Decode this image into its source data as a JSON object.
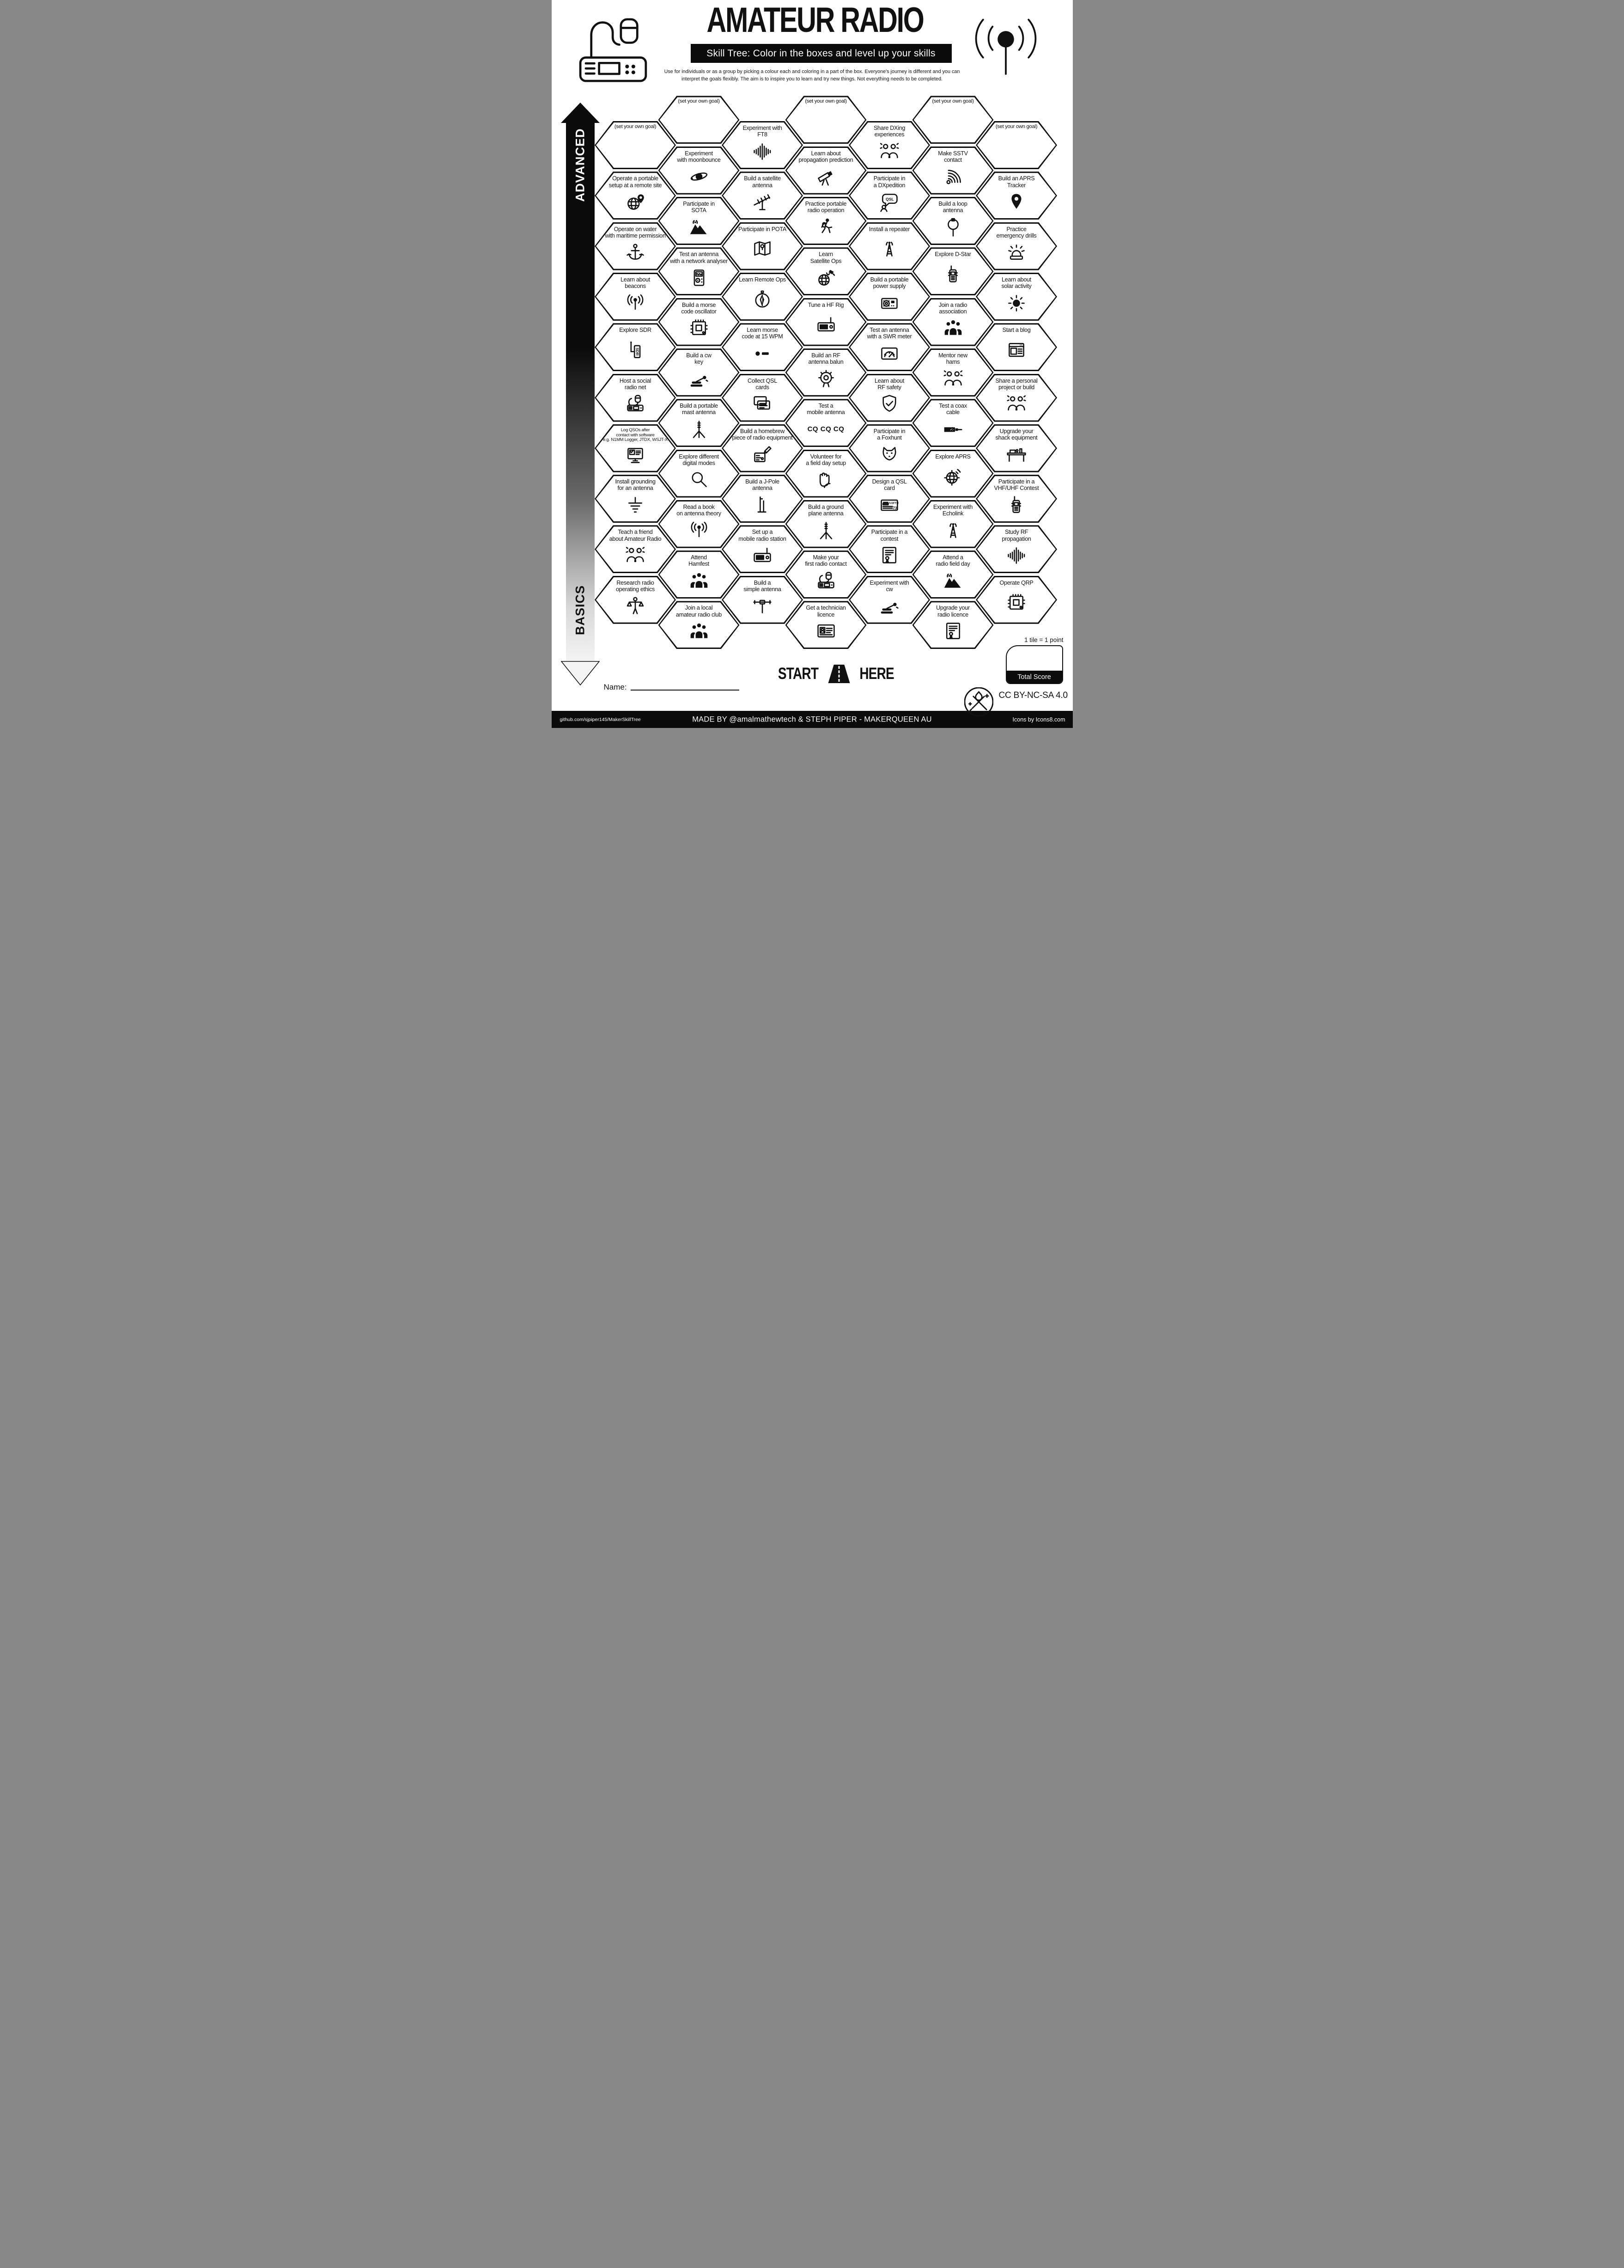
{
  "header": {
    "title": "AMATEUR RADIO",
    "subtitle": "Skill Tree:  Color in the boxes and level up your skills",
    "description": "Use for individuals or as a group by picking a colour each and coloring in a part of the box.  Everyone's journey is different and you can\ninterpret the goals flexibly.  The aim is to inspire you to learn and try new things. Not everything needs to be completed."
  },
  "level_arrow": {
    "top_label": "ADVANCED",
    "bottom_label": "BASICS"
  },
  "colors": {
    "ink": "#111111",
    "paper": "#ffffff"
  },
  "grid": {
    "columns": [
      {
        "items": [
          {
            "label": "(set your own goal)",
            "icon": "goal",
            "goal": true
          },
          {
            "label": "Operate a portable\nsetup at a remote site",
            "icon": "globe-pin"
          },
          {
            "label": "Operate on water\nwith maritime permission",
            "icon": "anchor"
          },
          {
            "label": "Learn about\nbeacons",
            "icon": "antenna-signal"
          },
          {
            "label": "Explore SDR",
            "icon": "sdr-dongle"
          },
          {
            "label": "Host a social\nradio net",
            "icon": "mic-radio"
          },
          {
            "label": "Log QSOs after\ncontact with software\ne.g. N1MM Logger, JTDX, WSJT-X",
            "icon": "computer-monitor",
            "small": true
          },
          {
            "label": "Install grounding\nfor an antenna",
            "icon": "ground-symbol"
          },
          {
            "label": "Teach a friend\nabout Amateur Radio",
            "icon": "people-learning"
          },
          {
            "label": "Research radio\noperating ethics",
            "icon": "ethics-scales"
          }
        ]
      },
      {
        "items": [
          {
            "label": "(set your own goal)",
            "icon": "goal",
            "goal": true
          },
          {
            "label": "Experiment\nwith moonbounce",
            "icon": "planet-orbit"
          },
          {
            "label": "Participate in\nSOTA",
            "icon": "mountain"
          },
          {
            "label": "Test an antenna\nwith a network analyser",
            "icon": "network-analyser"
          },
          {
            "label": "Build a morse\ncode oscillator",
            "icon": "circuit-board"
          },
          {
            "label": "Build a cw\nkey",
            "icon": "cw-key"
          },
          {
            "label": "Build a portable\nmast antenna",
            "icon": "mast-antenna"
          },
          {
            "label": "Explore different\ndigital modes",
            "icon": "magnifier"
          },
          {
            "label": "Read a book\non antenna theory",
            "icon": "antenna-signal"
          },
          {
            "label": "Attend\nHamfest",
            "icon": "crowd"
          },
          {
            "label": "Join a local\namateur radio club",
            "icon": "crowd"
          }
        ]
      },
      {
        "items": [
          {
            "label": "Experiment with\nFT8",
            "icon": "waveform"
          },
          {
            "label": "Build a satellite\nantenna",
            "icon": "yagi-antenna"
          },
          {
            "label": "Participate in POTA",
            "icon": "folded-map"
          },
          {
            "label": "Learn Remote Ops",
            "icon": "compass"
          },
          {
            "label": "Learn morse\ncode at 15 WPM",
            "icon": "morse-code"
          },
          {
            "label": "Collect QSL\ncards",
            "icon": "qsl-cards"
          },
          {
            "label": "Build a homebrew\npiece of radio equipment",
            "icon": "soldering"
          },
          {
            "label": "Build a J-Pole\nantenna",
            "icon": "j-pole"
          },
          {
            "label": "Set up a\nmobile radio station",
            "icon": "radio-rig"
          },
          {
            "label": "Build a\nsimple antenna",
            "icon": "dipole"
          }
        ]
      },
      {
        "items": [
          {
            "label": "(set your own goal)",
            "icon": "goal",
            "goal": true
          },
          {
            "label": "Learn about\npropagation prediction",
            "icon": "telescope"
          },
          {
            "label": "Practice portable\nradio operation",
            "icon": "walking-operator"
          },
          {
            "label": "Learn\nSatellite Ops",
            "icon": "globe-satellite"
          },
          {
            "label": "Tune a HF Rig",
            "icon": "radio-rig"
          },
          {
            "label": "Build an RF\nantenna balun",
            "icon": "toroid"
          },
          {
            "label": "Test a\nmobile antenna",
            "icon": "cq-call",
            "icon_text": "CQ CQ CQ"
          },
          {
            "label": "Volunteer for\na field day setup",
            "icon": "helping-hands"
          },
          {
            "label": "Build a ground\nplane antenna",
            "icon": "mast-antenna"
          },
          {
            "label": "Make your\nfirst radio contact",
            "icon": "mic-radio"
          },
          {
            "label": "Get a technician\nlicence",
            "icon": "id-card"
          }
        ]
      },
      {
        "items": [
          {
            "label": "Share DXing\nexperiences",
            "icon": "people-learning"
          },
          {
            "label": "Participate in\na DXpedition",
            "icon": "qsl-bubble"
          },
          {
            "label": "Install a repeater",
            "icon": "radio-tower"
          },
          {
            "label": "Build a portable\npower supply",
            "icon": "power-supply"
          },
          {
            "label": "Test an antenna\nwith a SWR meter",
            "icon": "swr-meter"
          },
          {
            "label": "Learn about\nRF safety",
            "icon": "shield-check"
          },
          {
            "label": "Participate in\na Foxhunt",
            "icon": "fox"
          },
          {
            "label": "Design a QSL\ncard",
            "icon": "qsl-card"
          },
          {
            "label": "Participate in a\ncontest",
            "icon": "certificate"
          },
          {
            "label": "Experiment with\ncw",
            "icon": "cw-key"
          }
        ]
      },
      {
        "items": [
          {
            "label": "(set your own goal)",
            "icon": "goal",
            "goal": true
          },
          {
            "label": "Make SSTV\ncontact",
            "icon": "signal-arcs"
          },
          {
            "label": "Build a loop\nantenna",
            "icon": "loop-antenna"
          },
          {
            "label": "Explore D-Star",
            "icon": "walkie-talkie"
          },
          {
            "label": "Join a radio\nassociation",
            "icon": "crowd"
          },
          {
            "label": "Mentor new\nhams",
            "icon": "people-learning"
          },
          {
            "label": "Test a coax\ncable",
            "icon": "coax-cable"
          },
          {
            "label": "Explore APRS",
            "icon": "globe-crosshair"
          },
          {
            "label": "Experiment with\nEcholink",
            "icon": "radio-tower"
          },
          {
            "label": "Attend a\nradio field day",
            "icon": "mountain"
          },
          {
            "label": "Upgrade your\nradio licence",
            "icon": "certificate"
          }
        ]
      },
      {
        "items": [
          {
            "label": "(set your own goal)",
            "icon": "goal",
            "goal": true
          },
          {
            "label": "Build an APRS\nTracker",
            "icon": "map-pin"
          },
          {
            "label": "Practice\nemergency drills",
            "icon": "siren"
          },
          {
            "label": "Learn about\nsolar activity",
            "icon": "sun"
          },
          {
            "label": "Start a blog",
            "icon": "browser-window"
          },
          {
            "label": "Share a personal\nproject or build",
            "icon": "people-learning"
          },
          {
            "label": "Upgrade your\nshack equipment",
            "icon": "desk-setup"
          },
          {
            "label": "Participate in a\nVHF/UHF Contest",
            "icon": "walkie-talkie"
          },
          {
            "label": "Study RF\npropagation",
            "icon": "waveform"
          },
          {
            "label": "Operate QRP",
            "icon": "circuit-board"
          }
        ]
      }
    ]
  },
  "start": {
    "word1": "START",
    "word2": "HERE"
  },
  "name_label": "Name:",
  "score": {
    "tile_note": "1 tile = 1 point",
    "total_label": "Total Score"
  },
  "license_label": "CC BY-NC-SA 4.0",
  "footer": {
    "left": "github.com/sjpiper145/MakerSkillTree",
    "center": "MADE BY @amalmathewtech & STEPH PIPER  -  MAKERQUEEN AU",
    "right": "Icons by Icons8.com"
  }
}
